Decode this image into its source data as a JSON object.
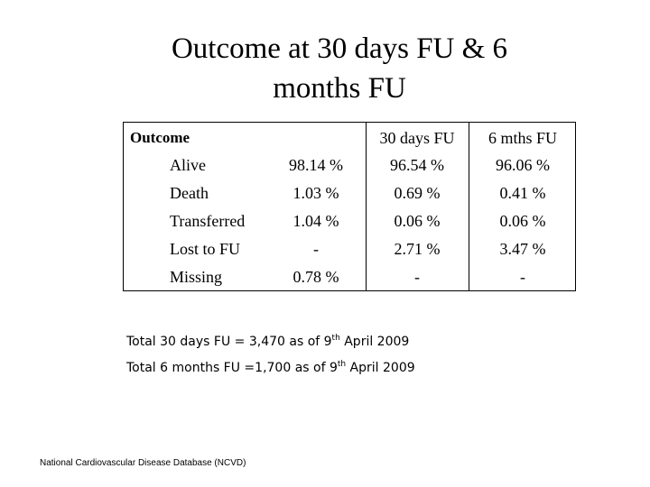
{
  "title": {
    "line1": "Outcome at 30 days FU & 6",
    "line2": "months FU"
  },
  "table": {
    "headers": {
      "outcome": "Outcome",
      "col1": "",
      "col2": "30 days FU",
      "col3": "6 mths FU"
    },
    "rows": [
      {
        "label": "Alive",
        "col1": "98.14 %",
        "col2": "96.54 %",
        "col3": "96.06 %"
      },
      {
        "label": "Death",
        "col1": "1.03 %",
        "col2": "0.69 %",
        "col3": "0.41 %"
      },
      {
        "label": "Transferred",
        "col1": "1.04 %",
        "col2": "0.06 %",
        "col3": "0.06 %"
      },
      {
        "label": "Lost to FU",
        "col1": "-",
        "col2": "2.71 %",
        "col3": "3.47 %"
      },
      {
        "label": "Missing",
        "col1": "0.78 %",
        "col2": "-",
        "col3": "-"
      }
    ]
  },
  "notes": {
    "line1_prefix": "Total 30 days FU = 3,470 as of 9",
    "line1_sup": "th",
    "line1_suffix": " April 2009",
    "line2_prefix": "Total 6 months FU =1,700 as of 9",
    "line2_sup": "th",
    "line2_suffix": " April 2009"
  },
  "footer": "National Cardiovascular Disease Database (NCVD)"
}
